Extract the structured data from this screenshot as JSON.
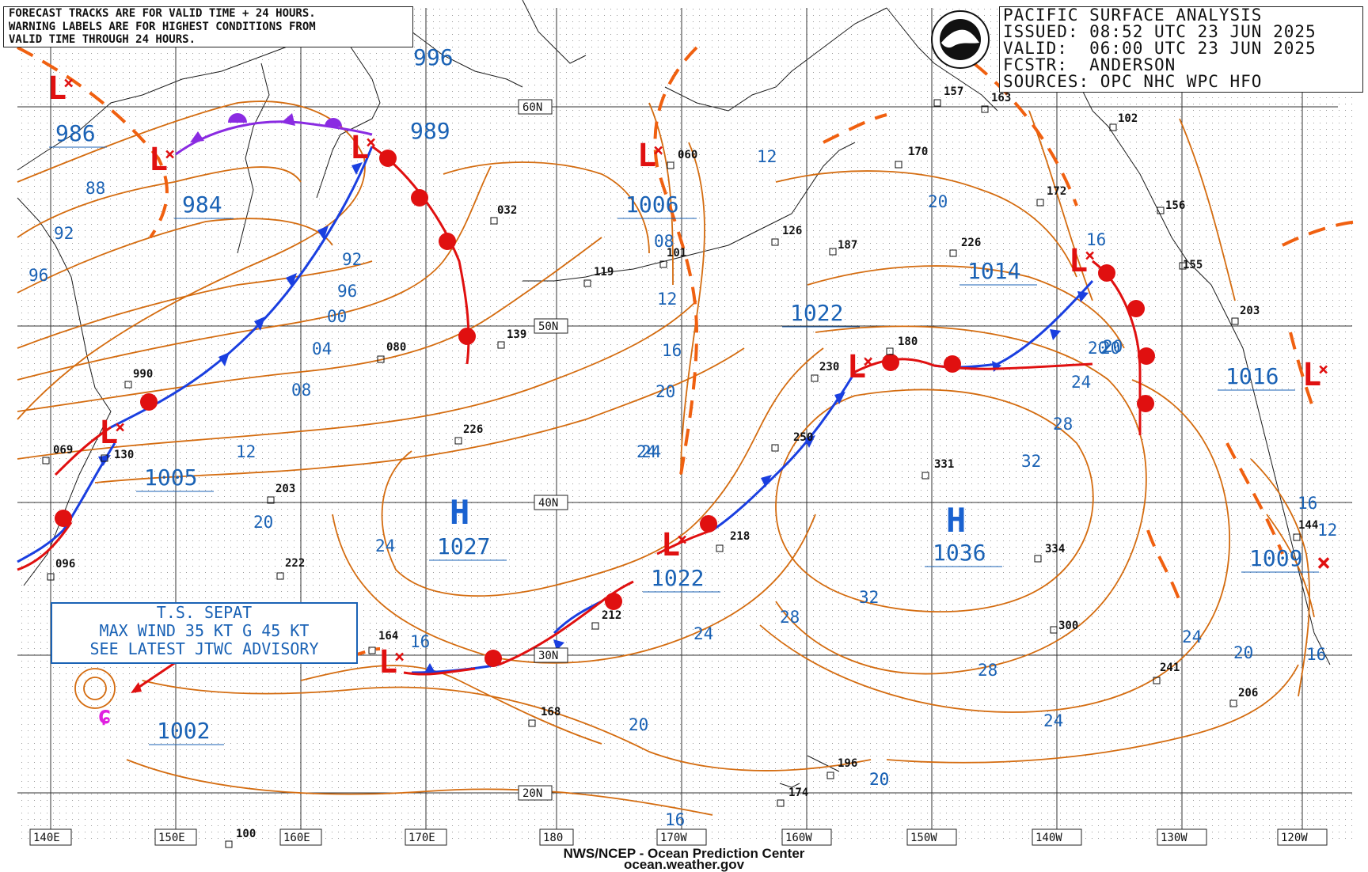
{
  "header": {
    "title_line": "PACIFIC SURFACE ANALYSIS",
    "issued_line": "ISSUED: 08:52 UTC 23 JUN 2025",
    "valid_line": "VALID:  06:00 UTC 23 JUN 2025",
    "forecaster_line": "FCSTR:  ANDERSON",
    "sources_line": "SOURCES: OPC NHC WPC HFO"
  },
  "notes": {
    "line1": "FORECAST TRACKS ARE FOR VALID TIME + 24 HOURS.",
    "line2": "WARNING LABELS ARE FOR HIGHEST CONDITIONS FROM",
    "line3": "VALID TIME THROUGH 24 HOURS."
  },
  "tropical_storm": {
    "line1": "T.S. SEPAT",
    "line2": "MAX WIND 35 KT G 45 KT",
    "line3": "SEE LATEST JTWC ADVISORY",
    "pressure": "1002"
  },
  "footer": {
    "line1": "NWS/NCEP - Ocean Prediction Center",
    "line2": "ocean.weather.gov"
  },
  "longitude_labels": [
    "140E",
    "150E",
    "160E",
    "170E",
    "180",
    "170W",
    "160W",
    "150W",
    "140W",
    "130W",
    "120W"
  ],
  "latitude_labels": [
    "60N",
    "50N",
    "40N",
    "30N",
    "20N"
  ],
  "pressure_centers": [
    {
      "type": "L",
      "value": "986"
    },
    {
      "type": "L",
      "value": "984"
    },
    {
      "type": "L",
      "value": "989"
    },
    {
      "type": "L",
      "value": "996"
    },
    {
      "type": "L",
      "value": "1006"
    },
    {
      "type": "L",
      "value": "1005"
    },
    {
      "type": "H",
      "value": "1027"
    },
    {
      "type": "L",
      "value": "1022"
    },
    {
      "type": "L",
      "value": "1022"
    },
    {
      "type": "H",
      "value": "1036"
    },
    {
      "type": "L",
      "value": "1014"
    },
    {
      "type": "L",
      "value": "1016"
    },
    {
      "type": "L",
      "value": "1009"
    },
    {
      "type": "L",
      "value": "1002"
    }
  ],
  "isobar_labels": [
    "88",
    "92",
    "96",
    "92",
    "96",
    "00",
    "04",
    "08",
    "12",
    "20",
    "24",
    "16",
    "24",
    "20",
    "12",
    "08",
    "12",
    "16",
    "20",
    "24",
    "20",
    "28",
    "32",
    "32",
    "28",
    "24",
    "28",
    "20",
    "24",
    "20",
    "16",
    "16",
    "20",
    "24",
    "16",
    "12",
    "20",
    "16",
    "20",
    "24",
    "20"
  ],
  "station_labels": [
    "990",
    "069",
    "130",
    "096",
    "203",
    "222",
    "080",
    "226",
    "032",
    "119",
    "101",
    "060",
    "126",
    "187",
    "230",
    "250",
    "218",
    "212",
    "164",
    "168",
    "170",
    "157",
    "163",
    "226",
    "172",
    "102",
    "156",
    "155",
    "203",
    "180",
    "331",
    "334",
    "300",
    "241",
    "206",
    "144",
    "196",
    "174",
    "100",
    "139"
  ],
  "colors": {
    "isobar": "#d46c10",
    "cold_front": "#1a3fe0",
    "warm_front": "#e01010",
    "occluded": "#8a2be2",
    "low_symbol": "#e01010",
    "high_symbol": "#1a62d0",
    "label_text": "#1a62b5",
    "grid": "#333333"
  }
}
